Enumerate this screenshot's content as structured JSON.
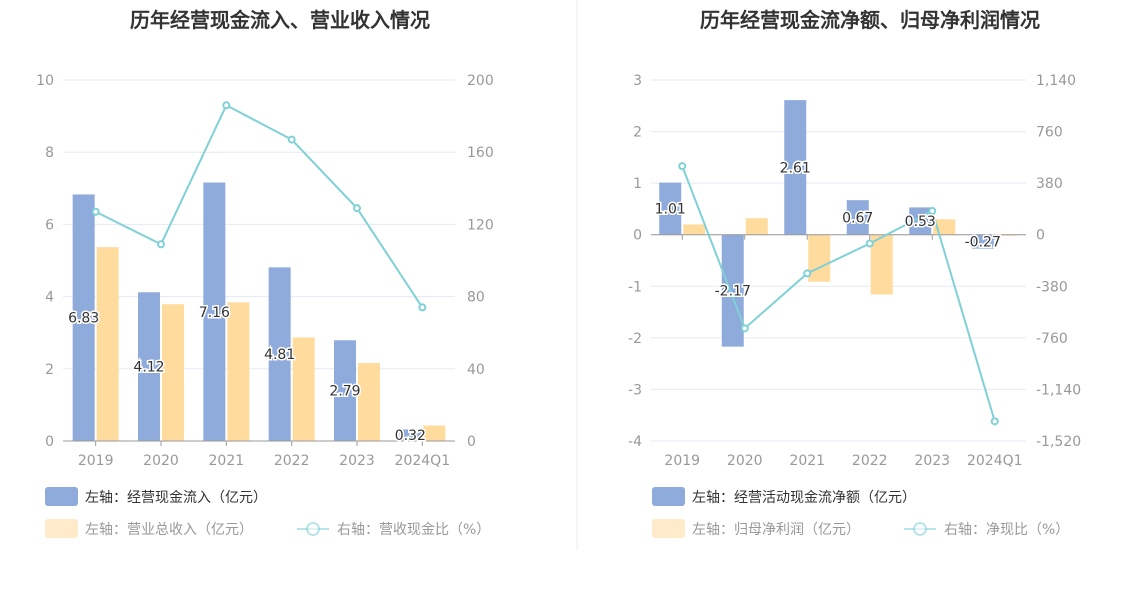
{
  "colors": {
    "bar1": "#8eabdb",
    "bar2": "#ffdb9e",
    "line": "#7fd1d6",
    "grid": "#e6e9f5",
    "axis": "#999999",
    "legend_active": "#333333",
    "legend_inactive": "#999999",
    "divider": "#eeeeee"
  },
  "chart_data": [
    {
      "type": "bar",
      "title": "历年经营现金流入、营业收入情况",
      "categories": [
        "2019",
        "2020",
        "2021",
        "2022",
        "2023",
        "2024Q1"
      ],
      "left_axis": {
        "ylim": [
          0,
          10
        ],
        "ticks": [
          "0",
          "2",
          "4",
          "6",
          "8",
          "10"
        ]
      },
      "right_axis": {
        "ylim": [
          0,
          200
        ],
        "ticks": [
          "0",
          "40",
          "80",
          "120",
          "160",
          "200"
        ]
      },
      "series": [
        {
          "name": "左轴：经营现金流入（亿元）",
          "kind": "bar",
          "axis": "left",
          "values": [
            6.83,
            4.12,
            7.16,
            4.81,
            2.79,
            0.32
          ],
          "labels": [
            "6.83",
            "4.12",
            "7.16",
            "4.81",
            "2.79",
            "0.32"
          ],
          "legend_active": true
        },
        {
          "name": "左轴：营业总收入（亿元）",
          "kind": "bar",
          "axis": "left",
          "values": [
            5.37,
            3.79,
            3.84,
            2.87,
            2.16,
            0.43
          ],
          "legend_active": false
        },
        {
          "name": "右轴：营收现金比（%）",
          "kind": "line",
          "axis": "right",
          "values": [
            127,
            109,
            186,
            167,
            129,
            74
          ],
          "legend_active": false
        }
      ]
    },
    {
      "type": "bar",
      "title": "历年经营现金流净额、归母净利润情况",
      "categories": [
        "2019",
        "2020",
        "2021",
        "2022",
        "2023",
        "2024Q1"
      ],
      "left_axis": {
        "ylim": [
          -4,
          3
        ],
        "ticks": [
          "-4",
          "-3",
          "-2",
          "-1",
          "0",
          "1",
          "2",
          "3"
        ]
      },
      "right_axis": {
        "ylim": [
          -1520,
          1140
        ],
        "ticks": [
          "-1,520",
          "-1,140",
          "-760",
          "-380",
          "0",
          "380",
          "760",
          "1,140"
        ]
      },
      "series": [
        {
          "name": "左轴：经营活动现金流净额（亿元）",
          "kind": "bar",
          "axis": "left",
          "values": [
            1.01,
            -2.17,
            2.61,
            0.67,
            0.53,
            -0.27
          ],
          "labels": [
            "1.01",
            "-2.17",
            "2.61",
            "0.67",
            "0.53",
            "-0.27"
          ],
          "legend_active": true
        },
        {
          "name": "左轴：归母净利润（亿元）",
          "kind": "bar",
          "axis": "left",
          "values": [
            0.2,
            0.32,
            -0.91,
            -1.16,
            0.3,
            -0.02
          ],
          "legend_active": false
        },
        {
          "name": "右轴：净现比（%）",
          "kind": "line",
          "axis": "right",
          "values": [
            505,
            -690,
            -285,
            -65,
            175,
            -1375
          ],
          "legend_active": false
        }
      ]
    }
  ]
}
